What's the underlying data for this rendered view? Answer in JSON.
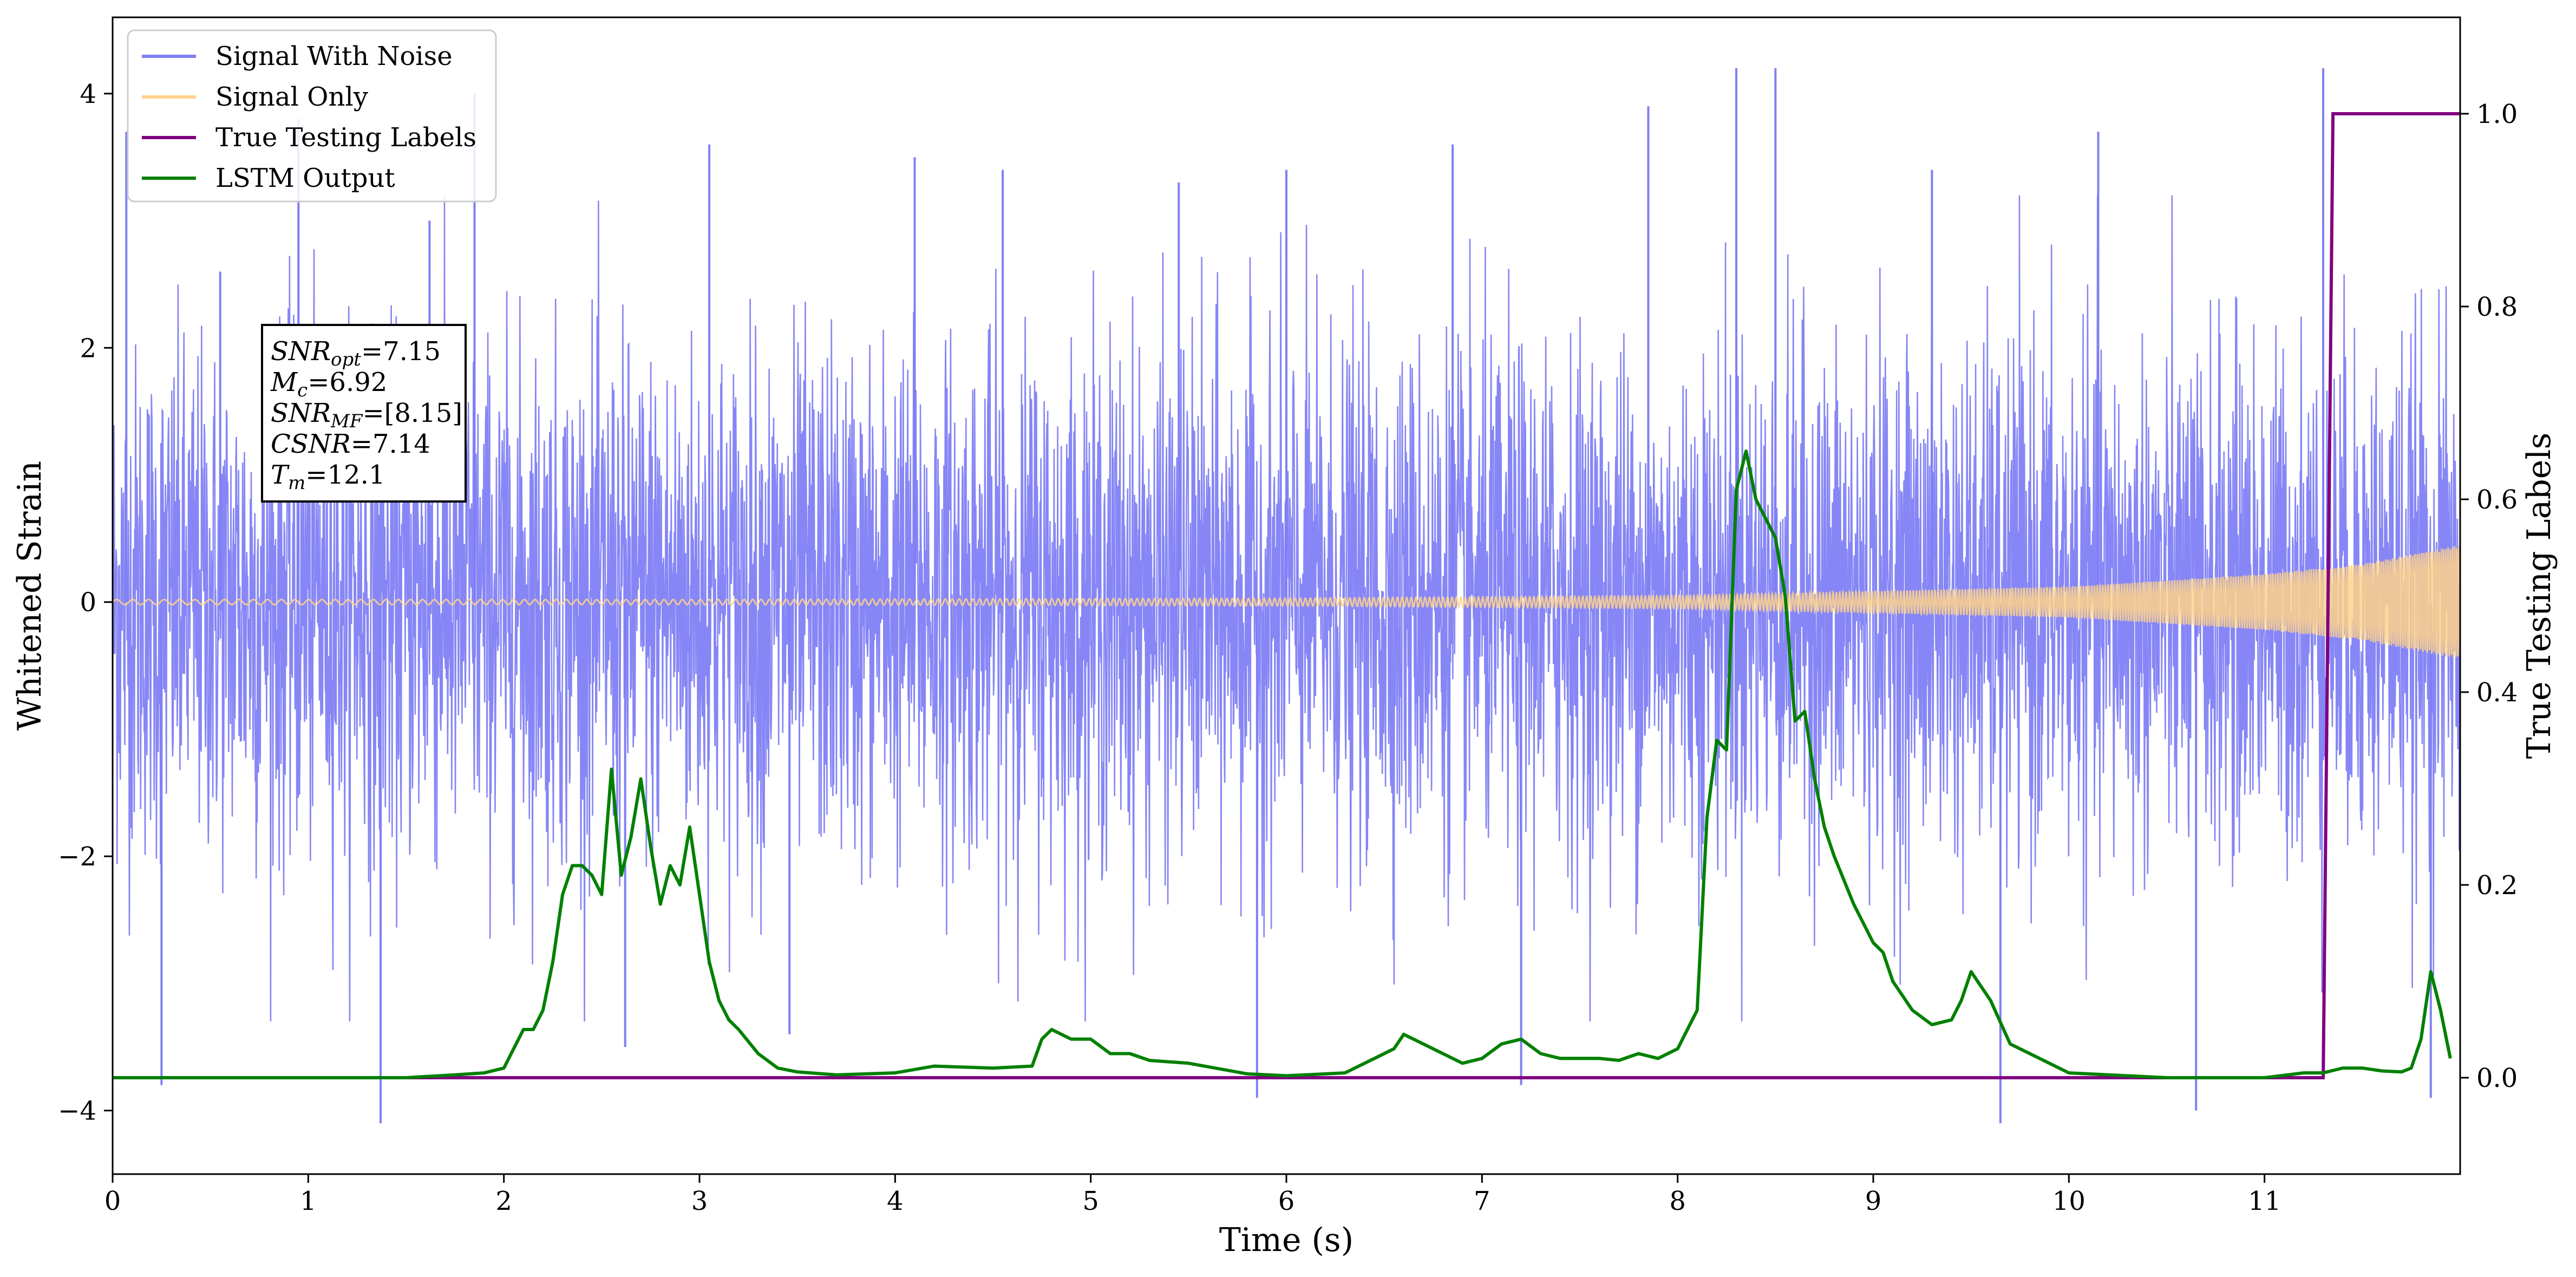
{
  "chart_data": {
    "type": "line",
    "xlabel": "Time (s)",
    "ylabel": "Whitened Strain",
    "y2label": "True Testing Labels",
    "xlim": [
      0,
      12.0
    ],
    "ylim": [
      -4.5,
      4.6
    ],
    "y2lim": [
      -0.1,
      1.1
    ],
    "x_ticks": [
      "0",
      "1",
      "2",
      "3",
      "4",
      "5",
      "6",
      "7",
      "8",
      "9",
      "10",
      "11"
    ],
    "y_ticks": [
      {
        "value": 4,
        "label": "4"
      },
      {
        "value": 2,
        "label": "2"
      },
      {
        "value": 0,
        "label": "0"
      },
      {
        "value": -2,
        "label": "−2"
      },
      {
        "value": -4,
        "label": "−4"
      }
    ],
    "y2_ticks": [
      "0.0",
      "0.2",
      "0.4",
      "0.6",
      "0.8",
      "1.0"
    ],
    "grid": false,
    "legend_position": "top-left",
    "legend": [
      {
        "label": "Signal With Noise",
        "color": "#7f7ff5"
      },
      {
        "label": "Signal Only",
        "color": "#ffd28a"
      },
      {
        "label": "True Testing Labels",
        "color": "#800080"
      },
      {
        "label": "LSTM Output",
        "color": "#008000"
      }
    ],
    "annotation": {
      "lines": [
        {
          "base": "SNR",
          "sub": "opt",
          "rest": "=7.15"
        },
        {
          "base": "M",
          "sub": "c",
          "rest": "=6.92"
        },
        {
          "base": "SNR",
          "sub": "MF",
          "rest": "=[8.15]"
        },
        {
          "base": "CSNR",
          "sub": "",
          "rest": "=7.14"
        },
        {
          "base": "T",
          "sub": "m",
          "rest": "=12.1"
        }
      ]
    },
    "series": [
      {
        "name": "Signal With Noise",
        "axis": "left",
        "color": "#7f7ff5",
        "description_free": true,
        "band_sigma": 1.0,
        "spike_peaks": [
          [
            0.07,
            3.7
          ],
          [
            0.25,
            -3.8
          ],
          [
            0.55,
            2.6
          ],
          [
            0.95,
            3.8
          ],
          [
            1.37,
            -4.1
          ],
          [
            1.62,
            3.0
          ],
          [
            1.85,
            4.0
          ],
          [
            2.62,
            -3.5
          ],
          [
            3.05,
            3.6
          ],
          [
            3.46,
            -3.4
          ],
          [
            4.1,
            3.5
          ],
          [
            4.55,
            3.4
          ],
          [
            5.45,
            3.3
          ],
          [
            5.85,
            -3.9
          ],
          [
            6.0,
            3.4
          ],
          [
            6.85,
            3.6
          ],
          [
            7.2,
            -3.8
          ],
          [
            7.85,
            3.9
          ],
          [
            8.3,
            4.2
          ],
          [
            8.5,
            4.2
          ],
          [
            9.3,
            3.4
          ],
          [
            9.65,
            -4.1
          ],
          [
            10.15,
            3.7
          ],
          [
            10.65,
            -4.0
          ],
          [
            11.3,
            4.2
          ],
          [
            11.85,
            -3.9
          ]
        ]
      },
      {
        "name": "Signal Only",
        "axis": "left",
        "color": "#ffd28a",
        "chirp_amplitude_points": [
          [
            0,
            0.02
          ],
          [
            3,
            0.02
          ],
          [
            6,
            0.03
          ],
          [
            8,
            0.05
          ],
          [
            10,
            0.12
          ],
          [
            11,
            0.22
          ],
          [
            11.5,
            0.3
          ],
          [
            12.0,
            0.45
          ]
        ]
      },
      {
        "name": "True Testing Labels",
        "axis": "right",
        "color": "#800080",
        "x": [
          0,
          11.3,
          11.35,
          12.0
        ],
        "y": [
          0.0,
          0.0,
          1.0,
          1.0
        ]
      },
      {
        "name": "LSTM Output",
        "axis": "right",
        "color": "#008000",
        "x": [
          0,
          0.5,
          1.0,
          1.5,
          1.75,
          1.9,
          2.0,
          2.05,
          2.1,
          2.15,
          2.2,
          2.25,
          2.3,
          2.35,
          2.4,
          2.45,
          2.5,
          2.55,
          2.6,
          2.65,
          2.7,
          2.75,
          2.8,
          2.85,
          2.9,
          2.95,
          3.0,
          3.05,
          3.1,
          3.15,
          3.2,
          3.3,
          3.4,
          3.5,
          3.7,
          4.0,
          4.2,
          4.5,
          4.7,
          4.75,
          4.8,
          4.9,
          5.0,
          5.1,
          5.2,
          5.3,
          5.5,
          5.8,
          6.0,
          6.3,
          6.5,
          6.55,
          6.6,
          6.7,
          6.8,
          6.9,
          7.0,
          7.1,
          7.2,
          7.3,
          7.4,
          7.5,
          7.6,
          7.7,
          7.8,
          7.9,
          8.0,
          8.1,
          8.15,
          8.2,
          8.25,
          8.3,
          8.35,
          8.4,
          8.45,
          8.5,
          8.55,
          8.6,
          8.65,
          8.7,
          8.75,
          8.8,
          8.9,
          9.0,
          9.05,
          9.1,
          9.2,
          9.3,
          9.4,
          9.45,
          9.5,
          9.6,
          9.7,
          10.0,
          10.5,
          11.0,
          11.2,
          11.3,
          11.4,
          11.5,
          11.6,
          11.7,
          11.75,
          11.8,
          11.85,
          11.9,
          11.95
        ],
        "y": [
          0.0,
          0.0,
          0.0,
          0.0,
          0.003,
          0.005,
          0.01,
          0.03,
          0.05,
          0.05,
          0.07,
          0.12,
          0.19,
          0.22,
          0.22,
          0.21,
          0.19,
          0.32,
          0.21,
          0.25,
          0.31,
          0.24,
          0.18,
          0.22,
          0.2,
          0.26,
          0.19,
          0.12,
          0.08,
          0.06,
          0.05,
          0.025,
          0.01,
          0.006,
          0.003,
          0.005,
          0.012,
          0.01,
          0.012,
          0.04,
          0.05,
          0.04,
          0.04,
          0.025,
          0.025,
          0.018,
          0.015,
          0.004,
          0.002,
          0.005,
          0.025,
          0.03,
          0.045,
          0.035,
          0.025,
          0.015,
          0.02,
          0.035,
          0.04,
          0.025,
          0.02,
          0.02,
          0.02,
          0.018,
          0.025,
          0.02,
          0.03,
          0.07,
          0.27,
          0.35,
          0.34,
          0.61,
          0.65,
          0.6,
          0.58,
          0.56,
          0.5,
          0.37,
          0.38,
          0.31,
          0.26,
          0.23,
          0.18,
          0.14,
          0.13,
          0.1,
          0.07,
          0.055,
          0.06,
          0.08,
          0.11,
          0.08,
          0.035,
          0.005,
          0.0,
          0.0,
          0.005,
          0.005,
          0.01,
          0.01,
          0.007,
          0.006,
          0.01,
          0.04,
          0.11,
          0.07,
          0.02
        ]
      }
    ]
  }
}
